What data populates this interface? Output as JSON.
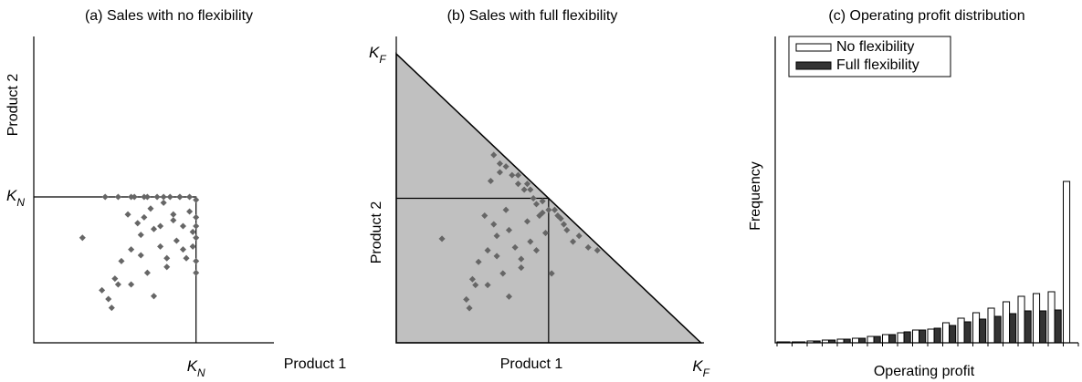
{
  "chart_data": [
    {
      "type": "scatter",
      "title": "(a) Sales with no flexibility",
      "x_label": "Product 1",
      "y_label": "Product 2",
      "xlim": [
        0,
        7.4
      ],
      "ylim": [
        0,
        10.5
      ],
      "xticks": [
        {
          "value": 5,
          "label": "KN"
        }
      ],
      "yticks": [
        {
          "value": 5,
          "label": "KN"
        }
      ],
      "color": "#666666",
      "x": [
        1.5,
        2.3,
        2.5,
        2.7,
        2.9,
        3.0,
        3.1,
        3.2,
        3.3,
        3.4,
        3.5,
        3.6,
        3.7,
        3.8,
        3.9,
        4.0,
        4.1,
        4.2,
        4.3,
        4.4,
        4.5,
        4.6,
        4.7,
        4.8,
        4.9,
        5,
        5,
        5,
        5,
        5,
        2.2,
        2.6,
        3.0,
        3.5,
        4.0,
        4.5,
        4.8,
        2.4,
        2.6,
        3.0,
        3.3,
        3.7,
        4.1,
        4.6,
        5,
        2.1,
        3.4,
        4.3,
        4.9,
        3.9
      ],
      "values": [
        3.6,
        1.5,
        2.2,
        2.8,
        4.4,
        3.2,
        5,
        4.1,
        3.7,
        5,
        2.4,
        4.6,
        3.9,
        5,
        3.3,
        4.8,
        2.6,
        5,
        4.2,
        3.5,
        5,
        4.0,
        2.9,
        4.5,
        3.8,
        4.9,
        4.3,
        3.6,
        2.8,
        4.0,
        5,
        5,
        5,
        5,
        5,
        5,
        5,
        1.2,
        2.0,
        2.0,
        3.0,
        1.6,
        2.9,
        3.2,
        2.4,
        1.8,
        4.3,
        4.4,
        3.3,
        4.0
      ]
    },
    {
      "type": "scatter",
      "title": "(b) Sales with full flexibility",
      "x_label": "Product 1",
      "y_label": "Product 2",
      "xlim": [
        0,
        10.1
      ],
      "ylim": [
        0,
        10.6
      ],
      "xticks": [
        {
          "value": 10,
          "label": "KF"
        }
      ],
      "yticks": [
        {
          "value": 10,
          "label": "KF"
        }
      ],
      "capacity": 5,
      "color": "#666666",
      "region_color": "#c0c0c0",
      "x": [
        1.5,
        2.3,
        2.5,
        2.7,
        2.9,
        3.0,
        3.1,
        3.2,
        3.3,
        3.4,
        3.5,
        3.6,
        3.7,
        3.8,
        3.9,
        4.0,
        4.1,
        4.2,
        4.3,
        4.4,
        4.5,
        4.6,
        4.7,
        4.8,
        4.9,
        5.2,
        5.4,
        5.6,
        5.8,
        6.0,
        3.2,
        3.6,
        4.0,
        4.4,
        4.8,
        5.0,
        5.3,
        2.4,
        2.6,
        3.0,
        3.3,
        3.7,
        4.1,
        4.6,
        5.1,
        6.3,
        3.4,
        4.3,
        5.5,
        6.6
      ],
      "values": [
        3.6,
        1.5,
        2.2,
        2.8,
        4.4,
        3.2,
        5.6,
        4.1,
        3.7,
        6.2,
        2.4,
        4.6,
        3.9,
        5.8,
        3.3,
        5.5,
        2.6,
        5.3,
        4.2,
        3.5,
        5.0,
        4.8,
        4.4,
        4.5,
        3.8,
        4.6,
        4.3,
        3.9,
        3.5,
        3.7,
        6.5,
        6.1,
        5.8,
        5.3,
        4.9,
        4.6,
        4.4,
        1.2,
        2.0,
        2.0,
        3.0,
        1.6,
        2.9,
        3.2,
        2.4,
        3.3,
        5.9,
        5.5,
        4.1,
        3.2
      ]
    },
    {
      "type": "bar",
      "title": "(c) Operating profit distribution",
      "x_label": "Operating profit",
      "y_label": "Frequency",
      "ylim": [
        0,
        336
      ],
      "legend": "top-left",
      "categories": [
        null,
        null,
        null,
        null,
        null,
        null,
        null,
        null,
        null,
        null,
        null,
        null,
        null,
        null,
        null,
        null,
        null,
        null,
        null,
        null
      ],
      "series": [
        {
          "name": "No flexibility",
          "color": "#ffffff",
          "values": [
            1,
            1,
            2,
            3,
            4,
            5,
            7,
            9,
            11,
            14,
            15,
            22,
            27,
            33,
            38,
            45,
            51,
            54,
            56,
            177
          ]
        },
        {
          "name": "Full flexibility",
          "color": "#333333",
          "values": [
            1,
            1,
            2,
            3,
            4,
            5,
            7,
            9,
            12,
            14,
            16,
            19,
            23,
            26,
            29,
            32,
            35,
            35,
            36,
            0
          ]
        }
      ]
    }
  ]
}
